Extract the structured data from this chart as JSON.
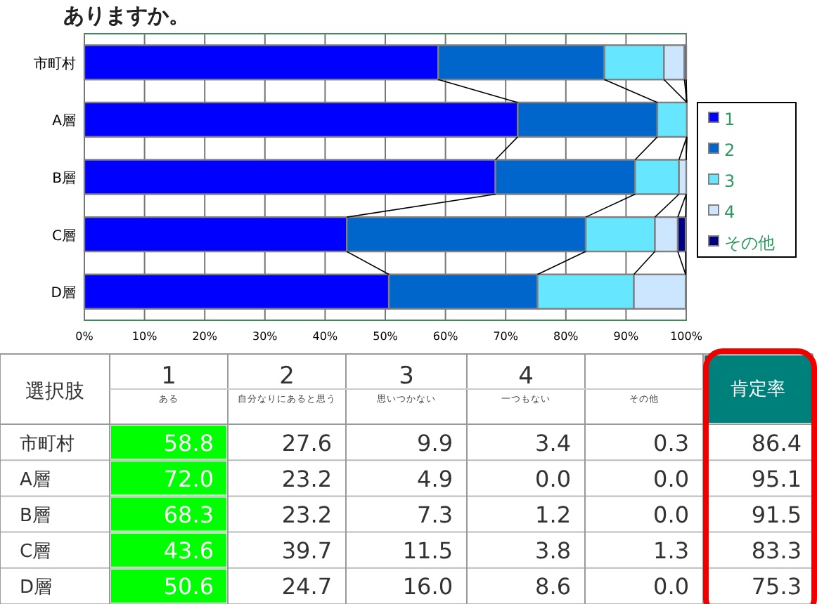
{
  "chart_data": {
    "type": "bar",
    "orientation": "horizontal",
    "stacked": true,
    "title": "ありますか。",
    "categories": [
      "市町村",
      "A層",
      "B層",
      "C層",
      "D層"
    ],
    "xlim": [
      0,
      100
    ],
    "xticks": [
      {
        "value": 0,
        "label": "0%"
      },
      {
        "value": 10,
        "label": "10%"
      },
      {
        "value": 20,
        "label": "20%"
      },
      {
        "value": 30,
        "label": "30%"
      },
      {
        "value": 40,
        "label": "40%"
      },
      {
        "value": 50,
        "label": "50%"
      },
      {
        "value": 60,
        "label": "60%"
      },
      {
        "value": 70,
        "label": "70%"
      },
      {
        "value": 80,
        "label": "80%"
      },
      {
        "value": 90,
        "label": "90%"
      },
      {
        "value": 100,
        "label": "100%"
      }
    ],
    "grid": "x",
    "legend": "right",
    "series": [
      {
        "name": "1",
        "color": "#0000ff",
        "values": [
          58.8,
          72.0,
          68.3,
          43.6,
          50.6
        ]
      },
      {
        "name": "2",
        "color": "#0066cc",
        "values": [
          27.6,
          23.2,
          23.2,
          39.7,
          24.7
        ]
      },
      {
        "name": "3",
        "color": "#66e6ff",
        "values": [
          9.9,
          4.9,
          7.3,
          11.5,
          16.0
        ]
      },
      {
        "name": "4",
        "color": "#cce6ff",
        "values": [
          3.4,
          0.0,
          1.2,
          3.8,
          8.6
        ]
      },
      {
        "name": "その他",
        "color": "#000080",
        "values": [
          0.3,
          0.0,
          0.0,
          1.3,
          0.0
        ]
      }
    ],
    "annotations": [
      "選択肢",
      "ある",
      "自分なりにあると思う",
      "思いつかない",
      "一つもない",
      "その他",
      "肯定率",
      "58.8",
      "27.6",
      "9.9",
      "3.4",
      "0.3",
      "86.4",
      "72.0",
      "23.2",
      "4.9",
      "0.0",
      "0.0",
      "95.1",
      "68.3",
      "23.2",
      "7.3",
      "1.2",
      "0.0",
      "91.5",
      "43.6",
      "39.7",
      "11.5",
      "3.8",
      "1.3",
      "83.3",
      "50.6",
      "24.7",
      "16.0",
      "8.6",
      "0.0",
      "75.3"
    ]
  }
}
